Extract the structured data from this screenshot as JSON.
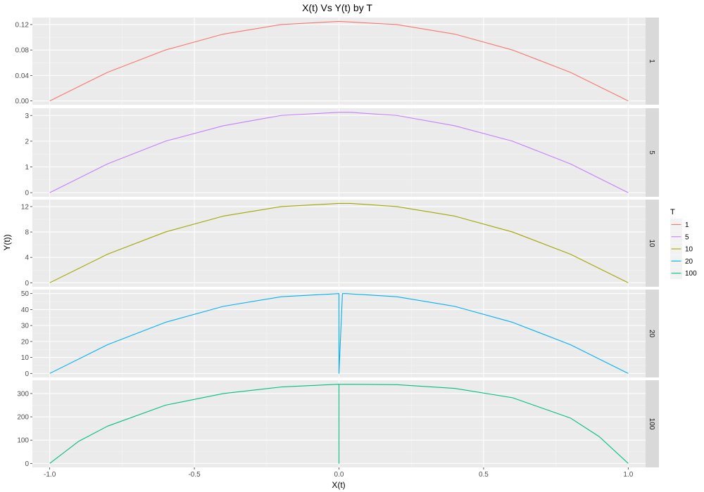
{
  "chart_data": {
    "type": "line",
    "title": "X(t) Vs Y(t) by T",
    "xlabel": "X(t)",
    "ylabel": "Y(t))",
    "xlim": [
      -1.06,
      1.06
    ],
    "x_ticks": [
      -1.0,
      -0.5,
      0.0,
      0.5,
      1.0
    ],
    "x_tick_labels": [
      "-1.0",
      "-0.5",
      "0.0",
      "0.5",
      "1.0"
    ],
    "grid": true,
    "facet_by": "T",
    "legend": {
      "title": "T",
      "position": "right",
      "entries": [
        "1",
        "5",
        "10",
        "20",
        "100"
      ]
    },
    "series": [
      {
        "name": "1",
        "color": "#F8766D",
        "facet_label": "1",
        "ylim": [
          -0.006,
          0.131
        ],
        "y_ticks": [
          0,
          0.04,
          0.08,
          0.12
        ],
        "y_tick_labels": [
          "0.00",
          "0.04",
          "0.08",
          "0.12"
        ],
        "x": [
          -1.0,
          -0.8,
          -0.6,
          -0.4,
          -0.2,
          0.0,
          0.2,
          0.4,
          0.6,
          0.8,
          1.0
        ],
        "y": [
          0.0,
          0.045,
          0.08,
          0.105,
          0.12,
          0.125,
          0.12,
          0.105,
          0.08,
          0.045,
          0.0
        ]
      },
      {
        "name": "5",
        "color": "#C77CFF",
        "facet_label": "5",
        "ylim": [
          -0.16,
          3.28
        ],
        "y_ticks": [
          0,
          1,
          2,
          3
        ],
        "y_tick_labels": [
          "0",
          "1",
          "2",
          "3"
        ],
        "x": [
          -1.0,
          -0.8,
          -0.6,
          -0.4,
          -0.2,
          0.0,
          0.04,
          0.2,
          0.4,
          0.6,
          0.8,
          1.0
        ],
        "y": [
          0.0,
          1.12,
          2.0,
          2.6,
          3.0,
          3.12,
          3.12,
          3.0,
          2.6,
          2.0,
          1.12,
          0.0
        ]
      },
      {
        "name": "10",
        "color": "#A3A500",
        "facet_label": "10",
        "ylim": [
          -0.63,
          13.1
        ],
        "y_ticks": [
          0,
          4,
          8,
          12
        ],
        "y_tick_labels": [
          "0",
          "4",
          "8",
          "12"
        ],
        "x": [
          -1.0,
          -0.8,
          -0.6,
          -0.4,
          -0.2,
          0.0,
          0.04,
          0.2,
          0.4,
          0.6,
          0.8,
          1.0
        ],
        "y": [
          0.0,
          4.5,
          8.0,
          10.5,
          12.0,
          12.5,
          12.5,
          12.0,
          10.5,
          8.0,
          4.5,
          0.0
        ]
      },
      {
        "name": "20",
        "color": "#00B0F6",
        "facet_label": "20",
        "ylim": [
          -2.5,
          52.5
        ],
        "y_ticks": [
          0,
          10,
          20,
          30,
          40,
          50
        ],
        "y_tick_labels": [
          "0",
          "10",
          "20",
          "30",
          "40",
          "50"
        ],
        "x": [
          -1.0,
          -0.8,
          -0.6,
          -0.4,
          -0.2,
          0.0,
          0.0,
          0.012,
          0.025,
          0.2,
          0.4,
          0.6,
          0.8,
          1.0
        ],
        "y": [
          0.0,
          18.0,
          32.0,
          42.0,
          48.0,
          50.0,
          0.0,
          50.0,
          50.0,
          48.0,
          42.0,
          32.0,
          18.0,
          0.0
        ]
      },
      {
        "name": "100",
        "color": "#00BF7D",
        "facet_label": "100",
        "ylim": [
          -17,
          357
        ],
        "y_ticks": [
          0,
          100,
          200,
          300
        ],
        "y_tick_labels": [
          "0",
          "100",
          "200",
          "300"
        ],
        "x": [
          -1.0,
          -0.9,
          -0.8,
          -0.6,
          -0.4,
          -0.2,
          0.0,
          0.0,
          0.0,
          0.0,
          0.2,
          0.4,
          0.6,
          0.8,
          0.9,
          1.0
        ],
        "y": [
          0.0,
          95.0,
          160.0,
          250.0,
          300.0,
          328.0,
          340.0,
          160.0,
          0.0,
          340.0,
          338.0,
          322.0,
          282.0,
          195.0,
          115.0,
          0.0
        ]
      }
    ]
  }
}
